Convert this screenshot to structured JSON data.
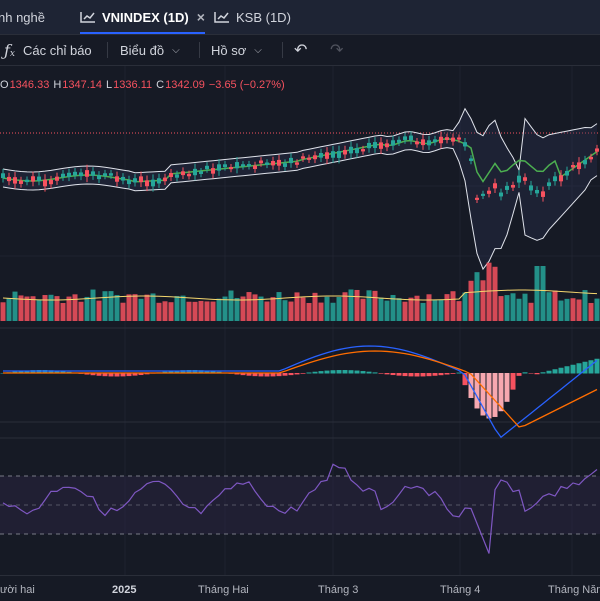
{
  "tabs": [
    {
      "label": "nh nghề"
    },
    {
      "label": "VNINDEX (1D)",
      "close": "×"
    },
    {
      "label": "KSB (1D)"
    }
  ],
  "toolbar": {
    "indicators_label": "Các chỉ báo",
    "chart_label": "Biểu đồ",
    "profile_label": "Hồ sơ",
    "icons": [
      "function-icon",
      "undo-icon",
      "redo-icon"
    ]
  },
  "legend": {
    "open_key": "O",
    "open": "1346.33",
    "high_key": "H",
    "high": "1347.14",
    "low_key": "L",
    "low": "1336.11",
    "close_key": "C",
    "close": "1342.09",
    "change": "−3.65 (−0.27%)"
  },
  "colors": {
    "up": "#26a69a",
    "down": "#f7525f",
    "ma": "#4caf50",
    "bollinger": "#e0e3eb",
    "macd": "#2962ff",
    "signal": "#ff6d00",
    "rsi": "#7e57c2",
    "volume_ma": "#f5d76e"
  },
  "x_axis": {
    "labels": [
      "ười hai",
      "2025",
      "Tháng Hai",
      "Tháng 3",
      "Tháng 4",
      "Tháng Năm"
    ]
  }
}
